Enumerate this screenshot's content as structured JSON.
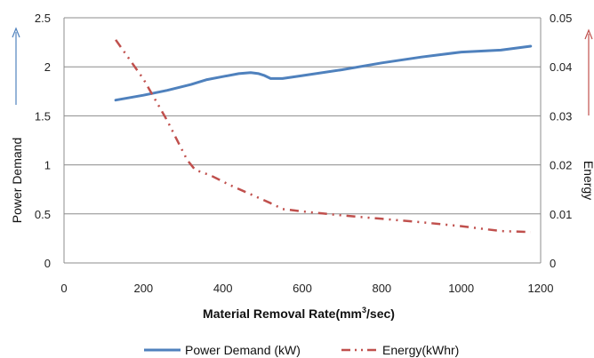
{
  "chart_data": {
    "type": "line",
    "title": "",
    "xlabel": "Material Removal Rate(mm³/sec)",
    "xlabel_main": "Material Removal Rate(mm",
    "xlabel_sup": "3",
    "xlabel_tail": "/sec)",
    "ylabel": "Power Demand",
    "y2label": "Energy",
    "xlim": [
      0,
      1200
    ],
    "ylim": [
      0,
      2.5
    ],
    "y2lim": [
      0,
      0.05
    ],
    "x_ticks": [
      "0",
      "200",
      "400",
      "600",
      "800",
      "1000",
      "1200"
    ],
    "y_ticks": [
      "0",
      "0.5",
      "1",
      "1.5",
      "2",
      "2.5"
    ],
    "y2_ticks": [
      "0",
      "0.01",
      "0.02",
      "0.03",
      "0.04",
      "0.05"
    ],
    "grid": "horizontal",
    "legend_position": "bottom",
    "series": [
      {
        "name": "Power Demand  (kW)",
        "axis": "left",
        "color": "#4f81bd",
        "style": "solid",
        "x": [
          130,
          200,
          260,
          320,
          360,
          400,
          440,
          470,
          490,
          505,
          520,
          550,
          600,
          700,
          800,
          900,
          1000,
          1100,
          1175
        ],
        "y": [
          1.66,
          1.71,
          1.76,
          1.82,
          1.87,
          1.9,
          1.93,
          1.94,
          1.93,
          1.91,
          1.88,
          1.88,
          1.91,
          1.97,
          2.04,
          2.1,
          2.15,
          2.17,
          2.21
        ]
      },
      {
        "name": "Energy(kWhr)",
        "axis": "right",
        "color": "#c0504d",
        "style": "dash-dot",
        "x": [
          130,
          200,
          260,
          310,
          330,
          370,
          420,
          470,
          520,
          550,
          600,
          700,
          800,
          900,
          1000,
          1100,
          1175
        ],
        "y": [
          0.0455,
          0.0375,
          0.029,
          0.021,
          0.019,
          0.0178,
          0.0158,
          0.014,
          0.0122,
          0.011,
          0.0105,
          0.0097,
          0.009,
          0.0083,
          0.0075,
          0.0065,
          0.0063
        ]
      }
    ]
  },
  "colors": {
    "grid": "#8c8c8c",
    "left_arrow": "#4f81bd",
    "right_arrow": "#c0504d"
  }
}
